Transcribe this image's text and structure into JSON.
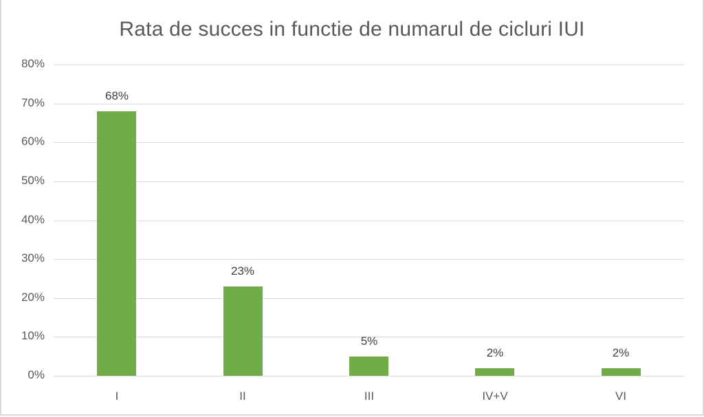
{
  "chart_data": {
    "type": "bar",
    "title": "Rata de succes in functie de numarul de cicluri IUI",
    "xlabel": "",
    "ylabel": "",
    "categories": [
      "I",
      "II",
      "III",
      "IV+V",
      "VI"
    ],
    "values": [
      68,
      23,
      5,
      2,
      2
    ],
    "data_labels": [
      "68%",
      "23%",
      "5%",
      "2%",
      "2%"
    ],
    "ylim": [
      0,
      80
    ],
    "yticks": [
      "0%",
      "10%",
      "20%",
      "30%",
      "40%",
      "50%",
      "60%",
      "70%",
      "80%"
    ],
    "grid": true,
    "legend": "none",
    "bar_color": "#70ad47"
  }
}
